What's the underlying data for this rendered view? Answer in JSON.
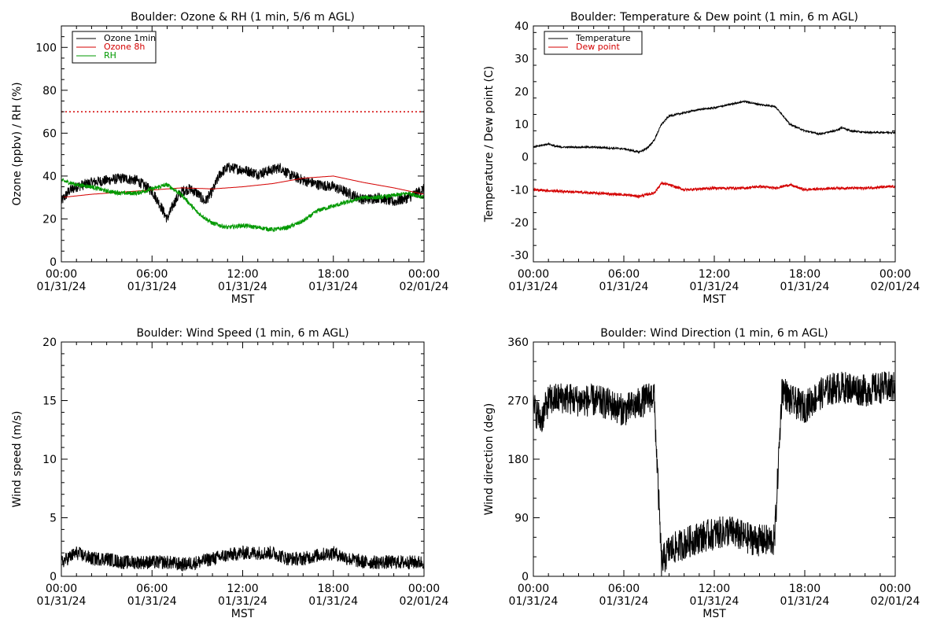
{
  "charts": [
    {
      "title": "Boulder: Ozone & RH (1 min, 5/6 m AGL)",
      "ylabel": "Ozone (ppbv) / RH (%)",
      "xlabel": "MST",
      "ylim": [
        0,
        110
      ],
      "yticks": [
        "0",
        "20",
        "40",
        "60",
        "80",
        "100"
      ],
      "ytick_values": [
        0,
        20,
        40,
        60,
        80,
        100
      ],
      "y_minor": 5,
      "xticks": [
        {
          "time": "00:00",
          "date": "01/31/24"
        },
        {
          "time": "06:00",
          "date": "01/31/24"
        },
        {
          "time": "12:00",
          "date": "01/31/24"
        },
        {
          "time": "18:00",
          "date": "01/31/24"
        },
        {
          "time": "00:00",
          "date": "02/01/24"
        }
      ],
      "legend": [
        {
          "name": "Ozone 1min",
          "color": "#000000"
        },
        {
          "name": "Ozone 8h",
          "color": "#d40000"
        },
        {
          "name": "RH",
          "color": "#009900"
        }
      ],
      "reference_line": {
        "y": 70,
        "color": "#d40000",
        "style": "dotted"
      }
    },
    {
      "title": "Boulder: Temperature & Dew point (1 min, 6 m AGL)",
      "ylabel": "Temperature / Dew point (C)",
      "xlabel": "MST",
      "ylim": [
        -32,
        40
      ],
      "yticks": [
        "-30",
        "-20",
        "-10",
        "0",
        "10",
        "20",
        "30",
        "40"
      ],
      "ytick_values": [
        -30,
        -20,
        -10,
        0,
        10,
        20,
        30,
        40
      ],
      "y_minor": 5,
      "xticks": [
        {
          "time": "00:00",
          "date": "01/31/24"
        },
        {
          "time": "06:00",
          "date": "01/31/24"
        },
        {
          "time": "12:00",
          "date": "01/31/24"
        },
        {
          "time": "18:00",
          "date": "01/31/24"
        },
        {
          "time": "00:00",
          "date": "02/01/24"
        }
      ],
      "legend": [
        {
          "name": "Temperature",
          "color": "#000000"
        },
        {
          "name": "Dew point",
          "color": "#d40000"
        }
      ]
    },
    {
      "title": "Boulder: Wind Speed (1 min, 6 m AGL)",
      "ylabel": "Wind speed (m/s)",
      "xlabel": "MST",
      "ylim": [
        0,
        20
      ],
      "yticks": [
        "0",
        "5",
        "10",
        "15",
        "20"
      ],
      "ytick_values": [
        0,
        5,
        10,
        15,
        20
      ],
      "y_minor": 1,
      "xticks": [
        {
          "time": "00:00",
          "date": "01/31/24"
        },
        {
          "time": "06:00",
          "date": "01/31/24"
        },
        {
          "time": "12:00",
          "date": "01/31/24"
        },
        {
          "time": "18:00",
          "date": "01/31/24"
        },
        {
          "time": "00:00",
          "date": "02/01/24"
        }
      ],
      "legend": []
    },
    {
      "title": "Boulder: Wind Direction (1 min, 6 m AGL)",
      "ylabel": "Wind direction (deg)",
      "xlabel": "MST",
      "ylim": [
        0,
        360
      ],
      "yticks": [
        "0",
        "90",
        "180",
        "270",
        "360"
      ],
      "ytick_values": [
        0,
        90,
        180,
        270,
        360
      ],
      "y_minor": 30,
      "xticks": [
        {
          "time": "00:00",
          "date": "01/31/24"
        },
        {
          "time": "06:00",
          "date": "01/31/24"
        },
        {
          "time": "12:00",
          "date": "01/31/24"
        },
        {
          "time": "18:00",
          "date": "01/31/24"
        },
        {
          "time": "00:00",
          "date": "02/01/24"
        }
      ],
      "legend": []
    }
  ],
  "chart_data": [
    {
      "type": "line",
      "title": "Boulder: Ozone & RH (1 min, 5/6 m AGL)",
      "xlabel": "MST",
      "ylabel": "Ozone (ppbv) / RH (%)",
      "x_unit": "hours since 01/31/24 00:00 MST",
      "xlim": [
        0,
        24
      ],
      "ylim": [
        0,
        110
      ],
      "legend_position": "top-left",
      "series": [
        {
          "name": "Ozone 1min",
          "color": "#000000",
          "noise": 2.5,
          "x": [
            0,
            0.5,
            1,
            2,
            3,
            4,
            5,
            6,
            6.5,
            7,
            7.5,
            8,
            8.5,
            9,
            9.5,
            10,
            10.5,
            11,
            12,
            13,
            14,
            14.5,
            15,
            16,
            17,
            18,
            19,
            20,
            21,
            22,
            23,
            24
          ],
          "y": [
            28,
            33,
            35,
            37,
            38,
            39,
            38,
            33,
            27,
            20,
            28,
            33,
            34,
            32,
            28,
            33,
            41,
            44,
            43,
            41,
            43,
            44,
            41,
            38,
            36,
            35,
            32,
            29,
            30,
            28,
            30,
            34
          ]
        },
        {
          "name": "Ozone 8h",
          "color": "#d40000",
          "noise": 0,
          "x": [
            0,
            2,
            4,
            6,
            8,
            10,
            12,
            14,
            16,
            18,
            20,
            22,
            24
          ],
          "y": [
            30,
            31.5,
            32.5,
            33.5,
            34.5,
            34,
            35,
            36.5,
            39,
            40,
            37,
            34.5,
            31.5
          ]
        },
        {
          "name": "RH",
          "color": "#009900",
          "noise": 1,
          "x": [
            0,
            1,
            2,
            3,
            4,
            5,
            6,
            7,
            8,
            9,
            10,
            11,
            12,
            13,
            14,
            15,
            16,
            17,
            18,
            19,
            20,
            21,
            22,
            23,
            24
          ],
          "y": [
            38,
            36,
            35,
            33,
            32,
            32,
            34,
            36,
            31,
            23,
            18,
            16,
            17,
            16,
            15,
            16,
            19,
            24,
            26,
            28,
            30,
            30,
            31,
            32,
            30
          ]
        }
      ],
      "reference_lines": [
        {
          "y": 70,
          "color": "#d40000",
          "style": "dotted"
        }
      ]
    },
    {
      "type": "line",
      "title": "Boulder: Temperature & Dew point (1 min, 6 m AGL)",
      "xlabel": "MST",
      "ylabel": "Temperature / Dew point (C)",
      "x_unit": "hours since 01/31/24 00:00 MST",
      "xlim": [
        0,
        24
      ],
      "ylim": [
        -32,
        40
      ],
      "legend_position": "top-left",
      "series": [
        {
          "name": "Temperature",
          "color": "#000000",
          "noise": 0.25,
          "x": [
            0,
            0.5,
            1,
            1.5,
            2,
            4,
            6,
            7,
            7.5,
            8,
            8.5,
            9,
            10,
            11,
            12,
            13,
            14,
            15,
            16,
            16.5,
            17,
            18,
            19,
            20,
            20.5,
            21,
            22,
            24
          ],
          "y": [
            3,
            3.5,
            4,
            3.2,
            3,
            3,
            2.5,
            1.5,
            2.5,
            5,
            10,
            12.5,
            13.5,
            14.5,
            15,
            16,
            17,
            16,
            15.5,
            13,
            10,
            8,
            7,
            8,
            9,
            8,
            7.5,
            7.5
          ]
        },
        {
          "name": "Dew point",
          "color": "#d40000",
          "noise": 0.4,
          "x": [
            0,
            2,
            4,
            6,
            7,
            8,
            8.5,
            9,
            10,
            12,
            14,
            15,
            16,
            17,
            18,
            20,
            22,
            24
          ],
          "y": [
            -10,
            -10.5,
            -11,
            -11.5,
            -12,
            -11,
            -8,
            -8.5,
            -10,
            -9.5,
            -9.5,
            -9,
            -9.5,
            -8.5,
            -10,
            -9.5,
            -9.5,
            -9
          ]
        }
      ]
    },
    {
      "type": "line",
      "title": "Boulder: Wind Speed (1 min, 6 m AGL)",
      "xlabel": "MST",
      "ylabel": "Wind speed (m/s)",
      "x_unit": "hours since 01/31/24 00:00 MST",
      "xlim": [
        0,
        24
      ],
      "ylim": [
        0,
        20
      ],
      "series": [
        {
          "name": "Wind speed",
          "color": "#000000",
          "noise": 0.6,
          "x": [
            0,
            1,
            2,
            3,
            4,
            5,
            6,
            7,
            8,
            9,
            10,
            11,
            12,
            13,
            14,
            15,
            16,
            17,
            18,
            19,
            20,
            21,
            22,
            23,
            24
          ],
          "y": [
            1.2,
            2,
            1.5,
            1.5,
            1.2,
            1.2,
            1.2,
            1.2,
            1.0,
            1.2,
            1.5,
            1.8,
            2.0,
            2.0,
            2.0,
            1.5,
            1.5,
            1.8,
            2.0,
            1.5,
            1.2,
            1.2,
            1.2,
            1.2,
            1.2
          ]
        }
      ]
    },
    {
      "type": "line",
      "title": "Boulder: Wind Direction (1 min, 6 m AGL)",
      "xlabel": "MST",
      "ylabel": "Wind direction (deg)",
      "x_unit": "hours since 01/31/24 00:00 MST",
      "xlim": [
        0,
        24
      ],
      "ylim": [
        0,
        360
      ],
      "series": [
        {
          "name": "Wind direction",
          "color": "#000000",
          "noise": 25,
          "x": [
            0,
            0.5,
            1,
            2,
            3,
            4,
            5,
            6,
            7,
            8,
            8.5,
            9,
            10,
            11,
            12,
            13,
            14,
            15,
            16,
            16.5,
            17,
            18,
            19,
            20,
            21,
            22,
            23,
            24
          ],
          "y": [
            260,
            240,
            270,
            275,
            270,
            270,
            265,
            255,
            265,
            280,
            20,
            40,
            50,
            60,
            65,
            70,
            60,
            55,
            55,
            290,
            270,
            260,
            280,
            290,
            290,
            285,
            290,
            290
          ]
        }
      ]
    }
  ]
}
